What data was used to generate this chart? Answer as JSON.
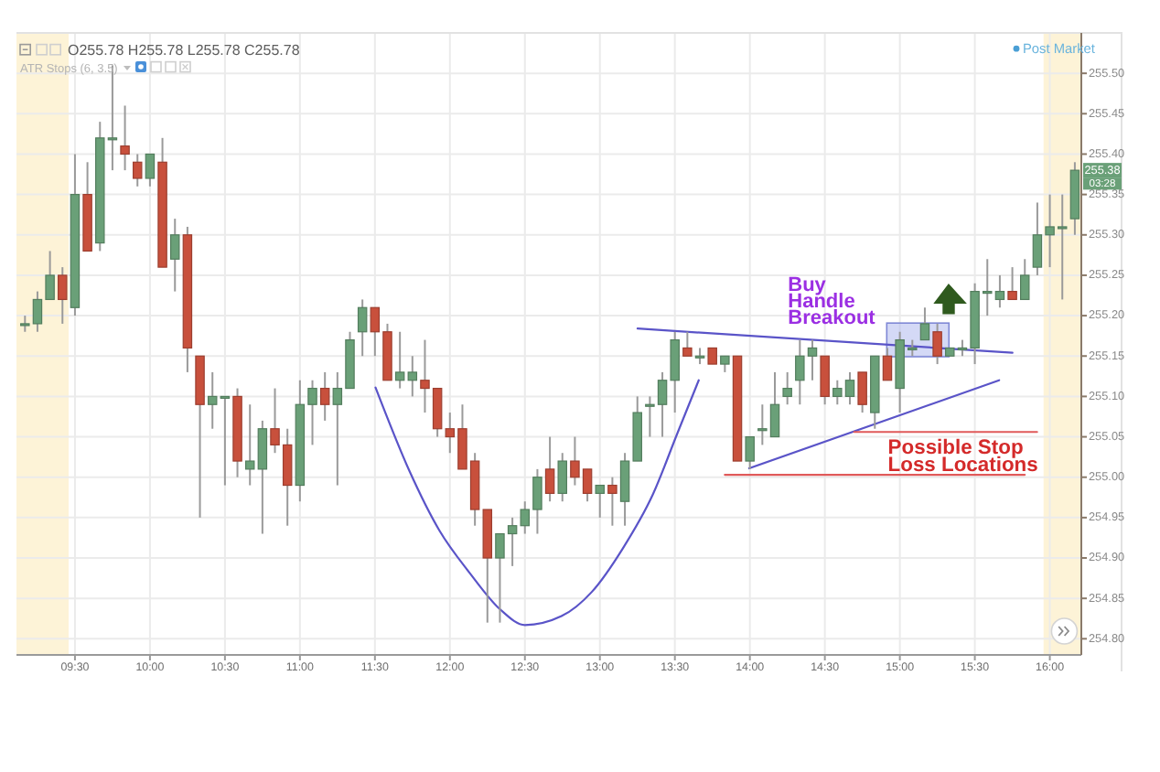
{
  "chart_data": {
    "type": "candlestick",
    "subtitle": "O255.78 H255.78 L255.78 C255.78",
    "x": [
      9.1667,
      9.25,
      9.3333,
      9.4167,
      9.5,
      9.5833,
      9.6667,
      9.75,
      9.8333,
      9.9167,
      10,
      10.0833,
      10.1667,
      10.25,
      10.3333,
      10.4167,
      10.5,
      10.5833,
      10.6667,
      10.75,
      10.8333,
      10.9167,
      11,
      11.0833,
      11.1667,
      11.25,
      11.3333,
      11.4167,
      11.5,
      11.5833,
      11.6667,
      11.75,
      11.8333,
      11.9167,
      12,
      12.0833,
      12.1667,
      12.25,
      12.3333,
      12.4167,
      12.5,
      12.5833,
      12.6667,
      12.75,
      12.8333,
      12.9167,
      13,
      13.0833,
      13.1667,
      13.25,
      13.3333,
      13.4167,
      13.5,
      13.5833,
      13.6667,
      13.75,
      13.8333,
      13.9167,
      14,
      14.0833,
      14.1667,
      14.25,
      14.3333,
      14.4167,
      14.5,
      14.5833,
      14.6667,
      14.75,
      14.8333,
      14.9167,
      15,
      15.0833,
      15.1667,
      15.25,
      15.3333,
      15.4167,
      15.5,
      15.5833,
      15.6667,
      15.75,
      15.8333,
      15.9167,
      16,
      16.0833,
      16.1667
    ],
    "ohlc": [
      [
        255.19,
        255.2,
        255.18,
        255.19
      ],
      [
        255.19,
        255.23,
        255.18,
        255.22
      ],
      [
        255.22,
        255.28,
        255.22,
        255.25
      ],
      [
        255.25,
        255.26,
        255.19,
        255.22
      ],
      [
        255.21,
        255.4,
        255.2,
        255.35
      ],
      [
        255.35,
        255.39,
        255.28,
        255.28
      ],
      [
        255.29,
        255.44,
        255.28,
        255.42
      ],
      [
        255.42,
        255.51,
        255.38,
        255.42
      ],
      [
        255.41,
        255.46,
        255.38,
        255.4
      ],
      [
        255.39,
        255.4,
        255.36,
        255.37
      ],
      [
        255.37,
        255.4,
        255.36,
        255.4
      ],
      [
        255.39,
        255.42,
        255.26,
        255.26
      ],
      [
        255.27,
        255.32,
        255.23,
        255.3
      ],
      [
        255.3,
        255.31,
        255.13,
        255.16
      ],
      [
        255.15,
        255.15,
        254.95,
        255.09
      ],
      [
        255.09,
        255.13,
        255.06,
        255.1
      ],
      [
        255.1,
        255.1,
        254.99,
        255.1
      ],
      [
        255.1,
        255.11,
        255,
        255.02
      ],
      [
        255.01,
        255.09,
        254.99,
        255.02
      ],
      [
        255.01,
        255.07,
        254.93,
        255.06
      ],
      [
        255.06,
        255.11,
        255.03,
        255.04
      ],
      [
        255.04,
        255.06,
        254.94,
        254.99
      ],
      [
        254.99,
        255.12,
        254.97,
        255.09
      ],
      [
        255.09,
        255.12,
        255.04,
        255.11
      ],
      [
        255.11,
        255.13,
        255.07,
        255.09
      ],
      [
        255.09,
        255.13,
        254.99,
        255.11
      ],
      [
        255.11,
        255.18,
        255.11,
        255.17
      ],
      [
        255.18,
        255.22,
        255.15,
        255.21
      ],
      [
        255.21,
        255.21,
        255.15,
        255.18
      ],
      [
        255.18,
        255.19,
        255.12,
        255.12
      ],
      [
        255.12,
        255.18,
        255.11,
        255.13
      ],
      [
        255.12,
        255.15,
        255.1,
        255.13
      ],
      [
        255.12,
        255.17,
        255.08,
        255.11
      ],
      [
        255.11,
        255.11,
        255.05,
        255.06
      ],
      [
        255.06,
        255.08,
        255.03,
        255.05
      ],
      [
        255.06,
        255.09,
        255.01,
        255.01
      ],
      [
        255.02,
        255.03,
        254.94,
        254.96
      ],
      [
        254.96,
        254.96,
        254.82,
        254.9
      ],
      [
        254.9,
        254.93,
        254.82,
        254.93
      ],
      [
        254.93,
        254.95,
        254.89,
        254.94
      ],
      [
        254.94,
        254.97,
        254.93,
        254.96
      ],
      [
        254.96,
        255.01,
        254.93,
        255
      ],
      [
        255.01,
        255.05,
        254.97,
        254.98
      ],
      [
        254.98,
        255.03,
        254.97,
        255.02
      ],
      [
        255.02,
        255.05,
        254.99,
        255
      ],
      [
        255.01,
        255.01,
        254.97,
        254.98
      ],
      [
        254.98,
        254.99,
        254.95,
        254.99
      ],
      [
        254.99,
        255,
        254.94,
        254.98
      ],
      [
        254.97,
        255.03,
        254.94,
        255.02
      ],
      [
        255.02,
        255.1,
        255.02,
        255.08
      ],
      [
        255.09,
        255.1,
        255.05,
        255.09
      ],
      [
        255.09,
        255.13,
        255.05,
        255.12
      ],
      [
        255.12,
        255.18,
        255.08,
        255.17
      ],
      [
        255.16,
        255.18,
        255.15,
        255.15
      ],
      [
        255.15,
        255.16,
        255.14,
        255.15
      ],
      [
        255.16,
        255.16,
        255.14,
        255.14
      ],
      [
        255.14,
        255.15,
        255.13,
        255.15
      ],
      [
        255.15,
        255.15,
        255.02,
        255.02
      ],
      [
        255.02,
        255.05,
        255.01,
        255.05
      ],
      [
        255.06,
        255.09,
        255.04,
        255.06
      ],
      [
        255.05,
        255.13,
        255.05,
        255.09
      ],
      [
        255.1,
        255.13,
        255.09,
        255.11
      ],
      [
        255.12,
        255.17,
        255.09,
        255.15
      ],
      [
        255.15,
        255.17,
        255.12,
        255.16
      ],
      [
        255.15,
        255.15,
        255.09,
        255.1
      ],
      [
        255.1,
        255.12,
        255.09,
        255.11
      ],
      [
        255.1,
        255.13,
        255.09,
        255.12
      ],
      [
        255.13,
        255.13,
        255.08,
        255.09
      ],
      [
        255.08,
        255.15,
        255.06,
        255.15
      ],
      [
        255.15,
        255.16,
        255.12,
        255.12
      ],
      [
        255.11,
        255.18,
        255.08,
        255.17
      ],
      [
        255.16,
        255.17,
        255.15,
        255.16
      ],
      [
        255.17,
        255.21,
        255.17,
        255.19
      ],
      [
        255.18,
        255.19,
        255.14,
        255.15
      ],
      [
        255.15,
        255.16,
        255.15,
        255.16
      ],
      [
        255.16,
        255.17,
        255.15,
        255.16
      ],
      [
        255.16,
        255.24,
        255.14,
        255.23
      ],
      [
        255.23,
        255.27,
        255.2,
        255.23
      ],
      [
        255.22,
        255.25,
        255.21,
        255.23
      ],
      [
        255.23,
        255.26,
        255.22,
        255.22
      ],
      [
        255.22,
        255.27,
        255.22,
        255.25
      ],
      [
        255.26,
        255.34,
        255.25,
        255.3
      ],
      [
        255.3,
        255.35,
        255.26,
        255.31
      ],
      [
        255.31,
        255.35,
        255.22,
        255.31
      ],
      [
        255.32,
        255.39,
        255.3,
        255.38
      ]
    ],
    "colors": [
      "#6aa078",
      "#6aa078",
      "#6aa078",
      "#c8503c",
      "#6aa078",
      "#c8503c",
      "#6aa078",
      "#6aa078",
      "#c8503c",
      "#c8503c",
      "#6aa078",
      "#c8503c",
      "#6aa078",
      "#c8503c",
      "#c8503c",
      "#6aa078",
      "#6aa078",
      "#c8503c",
      "#6aa078",
      "#6aa078",
      "#c8503c",
      "#c8503c",
      "#6aa078",
      "#6aa078",
      "#c8503c",
      "#6aa078",
      "#6aa078",
      "#6aa078",
      "#c8503c",
      "#c8503c",
      "#6aa078",
      "#6aa078",
      "#c8503c",
      "#c8503c",
      "#c8503c",
      "#c8503c",
      "#c8503c",
      "#c8503c",
      "#6aa078",
      "#6aa078",
      "#6aa078",
      "#6aa078",
      "#c8503c",
      "#6aa078",
      "#c8503c",
      "#c8503c",
      "#6aa078",
      "#c8503c",
      "#6aa078",
      "#6aa078",
      "#6aa078",
      "#6aa078",
      "#6aa078",
      "#c8503c",
      "#6aa078",
      "#c8503c",
      "#6aa078",
      "#c8503c",
      "#6aa078",
      "#6aa078",
      "#6aa078",
      "#6aa078",
      "#6aa078",
      "#6aa078",
      "#c8503c",
      "#6aa078",
      "#6aa078",
      "#c8503c",
      "#6aa078",
      "#c8503c",
      "#6aa078",
      "#6aa078",
      "#6aa078",
      "#c8503c",
      "#6aa078",
      "#6aa078",
      "#6aa078",
      "#6aa078",
      "#6aa078",
      "#c8503c",
      "#6aa078",
      "#6aa078",
      "#6aa078",
      "#6aa078",
      "#6aa078"
    ],
    "series": [
      {
        "type": "line",
        "color": "#5a54c8",
        "x": [
          11.504,
          11.727,
          11.93,
          12.134,
          12.337,
          12.5,
          12.744,
          12.946,
          13.15,
          13.354,
          13.516,
          13.659
        ],
        "values": [
          255.111,
          255.009,
          254.934,
          254.881,
          254.836,
          254.817,
          254.828,
          254.858,
          254.911,
          254.979,
          255.054,
          255.12
        ]
      },
      {
        "type": "line",
        "color": "#5a54c8",
        "x": [
          13.251,
          15.751
        ],
        "values": [
          255.184,
          255.154
        ]
      },
      {
        "type": "line",
        "color": "#5a54c8",
        "x": [
          13.995,
          15.662
        ],
        "values": [
          255.011,
          255.12
        ]
      },
      {
        "type": "line",
        "color": "#e05a5a",
        "x": [
          14.695,
          15.915
        ],
        "values": [
          255.056,
          255.056
        ]
      },
      {
        "type": "line",
        "color": "#e05a5a",
        "x": [
          13.833,
          15.833
        ],
        "values": [
          255.003,
          255.003
        ]
      }
    ],
    "xlim": [
      9.11,
      16.21
    ],
    "xticks": [
      {
        "value": 9.5,
        "label": "09:30"
      },
      {
        "value": 10,
        "label": "10:00"
      },
      {
        "value": 10.5,
        "label": "10:30"
      },
      {
        "value": 11,
        "label": "11:00"
      },
      {
        "value": 11.5,
        "label": "11:30"
      },
      {
        "value": 12,
        "label": "12:00"
      },
      {
        "value": 12.5,
        "label": "12:30"
      },
      {
        "value": 13,
        "label": "13:00"
      },
      {
        "value": 13.5,
        "label": "13:30"
      },
      {
        "value": 14,
        "label": "14:00"
      },
      {
        "value": 14.5,
        "label": "14:30"
      },
      {
        "value": 15,
        "label": "15:00"
      },
      {
        "value": 15.5,
        "label": "15:30"
      },
      {
        "value": 16,
        "label": "16:00"
      }
    ],
    "ylim": [
      254.78,
      255.55
    ],
    "yticks": [
      {
        "value": 254.8,
        "label": "254.80"
      },
      254.85,
      {
        "value": 254.9,
        "label": "254.90"
      },
      254.95,
      {
        "value": 255,
        "label": "255.00"
      },
      255.05,
      {
        "value": 255.1,
        "label": "255.10"
      },
      255.15,
      {
        "value": 255.2,
        "label": "255.20"
      },
      255.25,
      {
        "value": 255.3,
        "label": "255.30"
      },
      255.35,
      {
        "value": 255.4,
        "label": "255.40"
      },
      255.45,
      {
        "value": 255.5,
        "label": "255.50"
      }
    ],
    "grid": true,
    "bands": [
      {
        "axis": "x",
        "from": 9.11,
        "to": 9.458,
        "color": "#fdf3d7"
      },
      {
        "axis": "x",
        "from": 15.958,
        "to": 16.21,
        "color": "#fdf3d7"
      }
    ],
    "annotations": [
      {
        "text": "Buy\nHandle\nBreakout",
        "x": 15.12,
        "y": 255.17
      },
      "Possible Stop\nLoss Locations",
      "ATR Stops (6, 3.5)",
      "Post Market",
      "255.38",
      "03:28"
    ]
  }
}
